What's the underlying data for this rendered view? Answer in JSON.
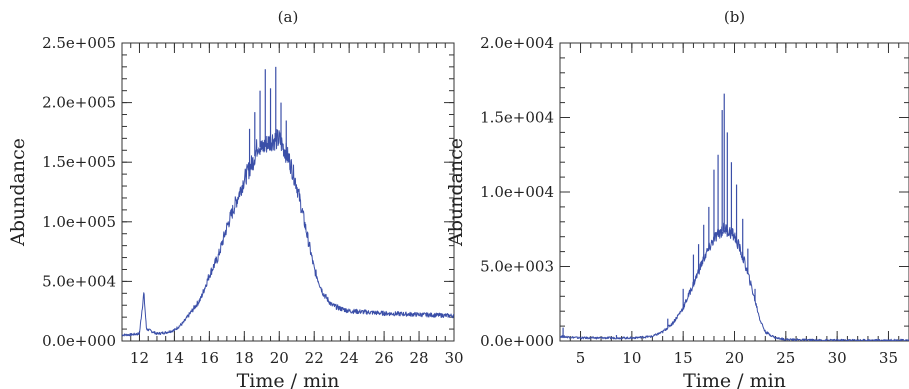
{
  "chart_data": [
    {
      "type": "line",
      "panel_label": "(a)",
      "xlabel": "Time / min",
      "ylabel": "Abundance",
      "xlim": [
        11,
        30
      ],
      "ylim": [
        0,
        250000
      ],
      "x_major_ticks": [
        12,
        14,
        16,
        18,
        20,
        22,
        24,
        26,
        28,
        30
      ],
      "x_tick_labels": [
        "12",
        "14",
        "16",
        "18",
        "20",
        "22",
        "24",
        "26",
        "28",
        "30"
      ],
      "y_major_ticks": [
        0,
        50000,
        100000,
        150000,
        200000,
        250000
      ],
      "y_tick_labels": [
        "0.0e+000",
        "5.0e+004",
        "1.0e+005",
        "1.5e+005",
        "2.0e+005",
        "2.5e+005"
      ],
      "x_minor_step": 0.5,
      "y_minor_step": 10000,
      "grid": false,
      "color": "#3b4fa8",
      "series": [
        {
          "x": [
            11.0,
            11.5,
            12.0,
            12.1,
            12.25,
            12.4,
            13.0,
            13.5,
            14.0,
            14.5,
            15.0,
            15.5,
            16.0,
            16.5,
            17.0,
            17.5,
            18.0,
            18.5,
            18.8,
            19.0,
            19.3,
            19.6,
            20.0,
            20.3,
            20.6,
            21.0,
            21.5,
            22.0,
            22.5,
            23.0,
            23.5,
            24.0,
            25.0,
            26.0,
            27.0,
            28.0,
            29.0,
            30.0
          ],
          "y": [
            5000,
            5200,
            6000,
            20000,
            40000,
            10000,
            6000,
            7000,
            9000,
            15000,
            25000,
            35000,
            55000,
            70000,
            95000,
            115000,
            135000,
            150000,
            165000,
            160000,
            165000,
            168000,
            168000,
            160000,
            150000,
            130000,
            95000,
            60000,
            40000,
            30000,
            27000,
            25000,
            24000,
            23000,
            22500,
            22000,
            21500,
            21000
          ]
        }
      ],
      "spikes": [
        {
          "x": 18.3,
          "y": 178000
        },
        {
          "x": 18.6,
          "y": 192000
        },
        {
          "x": 18.9,
          "y": 210000
        },
        {
          "x": 19.2,
          "y": 228000
        },
        {
          "x": 19.5,
          "y": 212000
        },
        {
          "x": 19.8,
          "y": 230000
        },
        {
          "x": 20.1,
          "y": 200000
        },
        {
          "x": 20.4,
          "y": 185000
        }
      ]
    },
    {
      "type": "line",
      "panel_label": "(b)",
      "xlabel": "Time / min",
      "ylabel": "Abundance",
      "xlim": [
        3,
        37
      ],
      "ylim": [
        0,
        20000
      ],
      "x_major_ticks": [
        5,
        10,
        15,
        20,
        25,
        30,
        35
      ],
      "x_tick_labels": [
        "5",
        "10",
        "15",
        "20",
        "25",
        "30",
        "35"
      ],
      "y_major_ticks": [
        0,
        5000,
        10000,
        15000,
        20000
      ],
      "y_tick_labels": [
        "0.0e+000",
        "5.0e+003",
        "1.0e+004",
        "1.5e+004",
        "2.0e+004"
      ],
      "x_minor_step": 1,
      "y_minor_step": 1000,
      "grid": false,
      "color": "#3b4fa8",
      "series": [
        {
          "x": [
            3.0,
            4.0,
            5.0,
            8.0,
            10.0,
            12.0,
            13.0,
            14.0,
            15.0,
            16.0,
            17.0,
            18.0,
            18.5,
            19.0,
            19.5,
            20.0,
            20.5,
            21.0,
            21.5,
            22.0,
            22.5,
            23.0,
            24.0,
            25.0,
            28.0,
            30.0,
            35.0,
            37.0
          ],
          "y": [
            300,
            250,
            200,
            200,
            200,
            300,
            600,
            1200,
            2200,
            3800,
            5500,
            6800,
            7200,
            7500,
            7300,
            7000,
            6200,
            5200,
            4000,
            2700,
            1400,
            600,
            200,
            100,
            50,
            50,
            50,
            50
          ]
        }
      ],
      "spikes": [
        {
          "x": 3.3,
          "y": 900
        },
        {
          "x": 8.5,
          "y": 400
        },
        {
          "x": 13.5,
          "y": 1500
        },
        {
          "x": 15.0,
          "y": 3500
        },
        {
          "x": 16.0,
          "y": 5800
        },
        {
          "x": 16.5,
          "y": 6500
        },
        {
          "x": 17.0,
          "y": 7800
        },
        {
          "x": 17.5,
          "y": 9000
        },
        {
          "x": 18.0,
          "y": 11500
        },
        {
          "x": 18.4,
          "y": 12500
        },
        {
          "x": 18.8,
          "y": 15500
        },
        {
          "x": 19.0,
          "y": 16600
        },
        {
          "x": 19.3,
          "y": 14000
        },
        {
          "x": 19.7,
          "y": 12000
        },
        {
          "x": 20.2,
          "y": 10500
        },
        {
          "x": 20.8,
          "y": 8200
        },
        {
          "x": 21.3,
          "y": 6200
        },
        {
          "x": 22.0,
          "y": 3500
        }
      ]
    }
  ]
}
